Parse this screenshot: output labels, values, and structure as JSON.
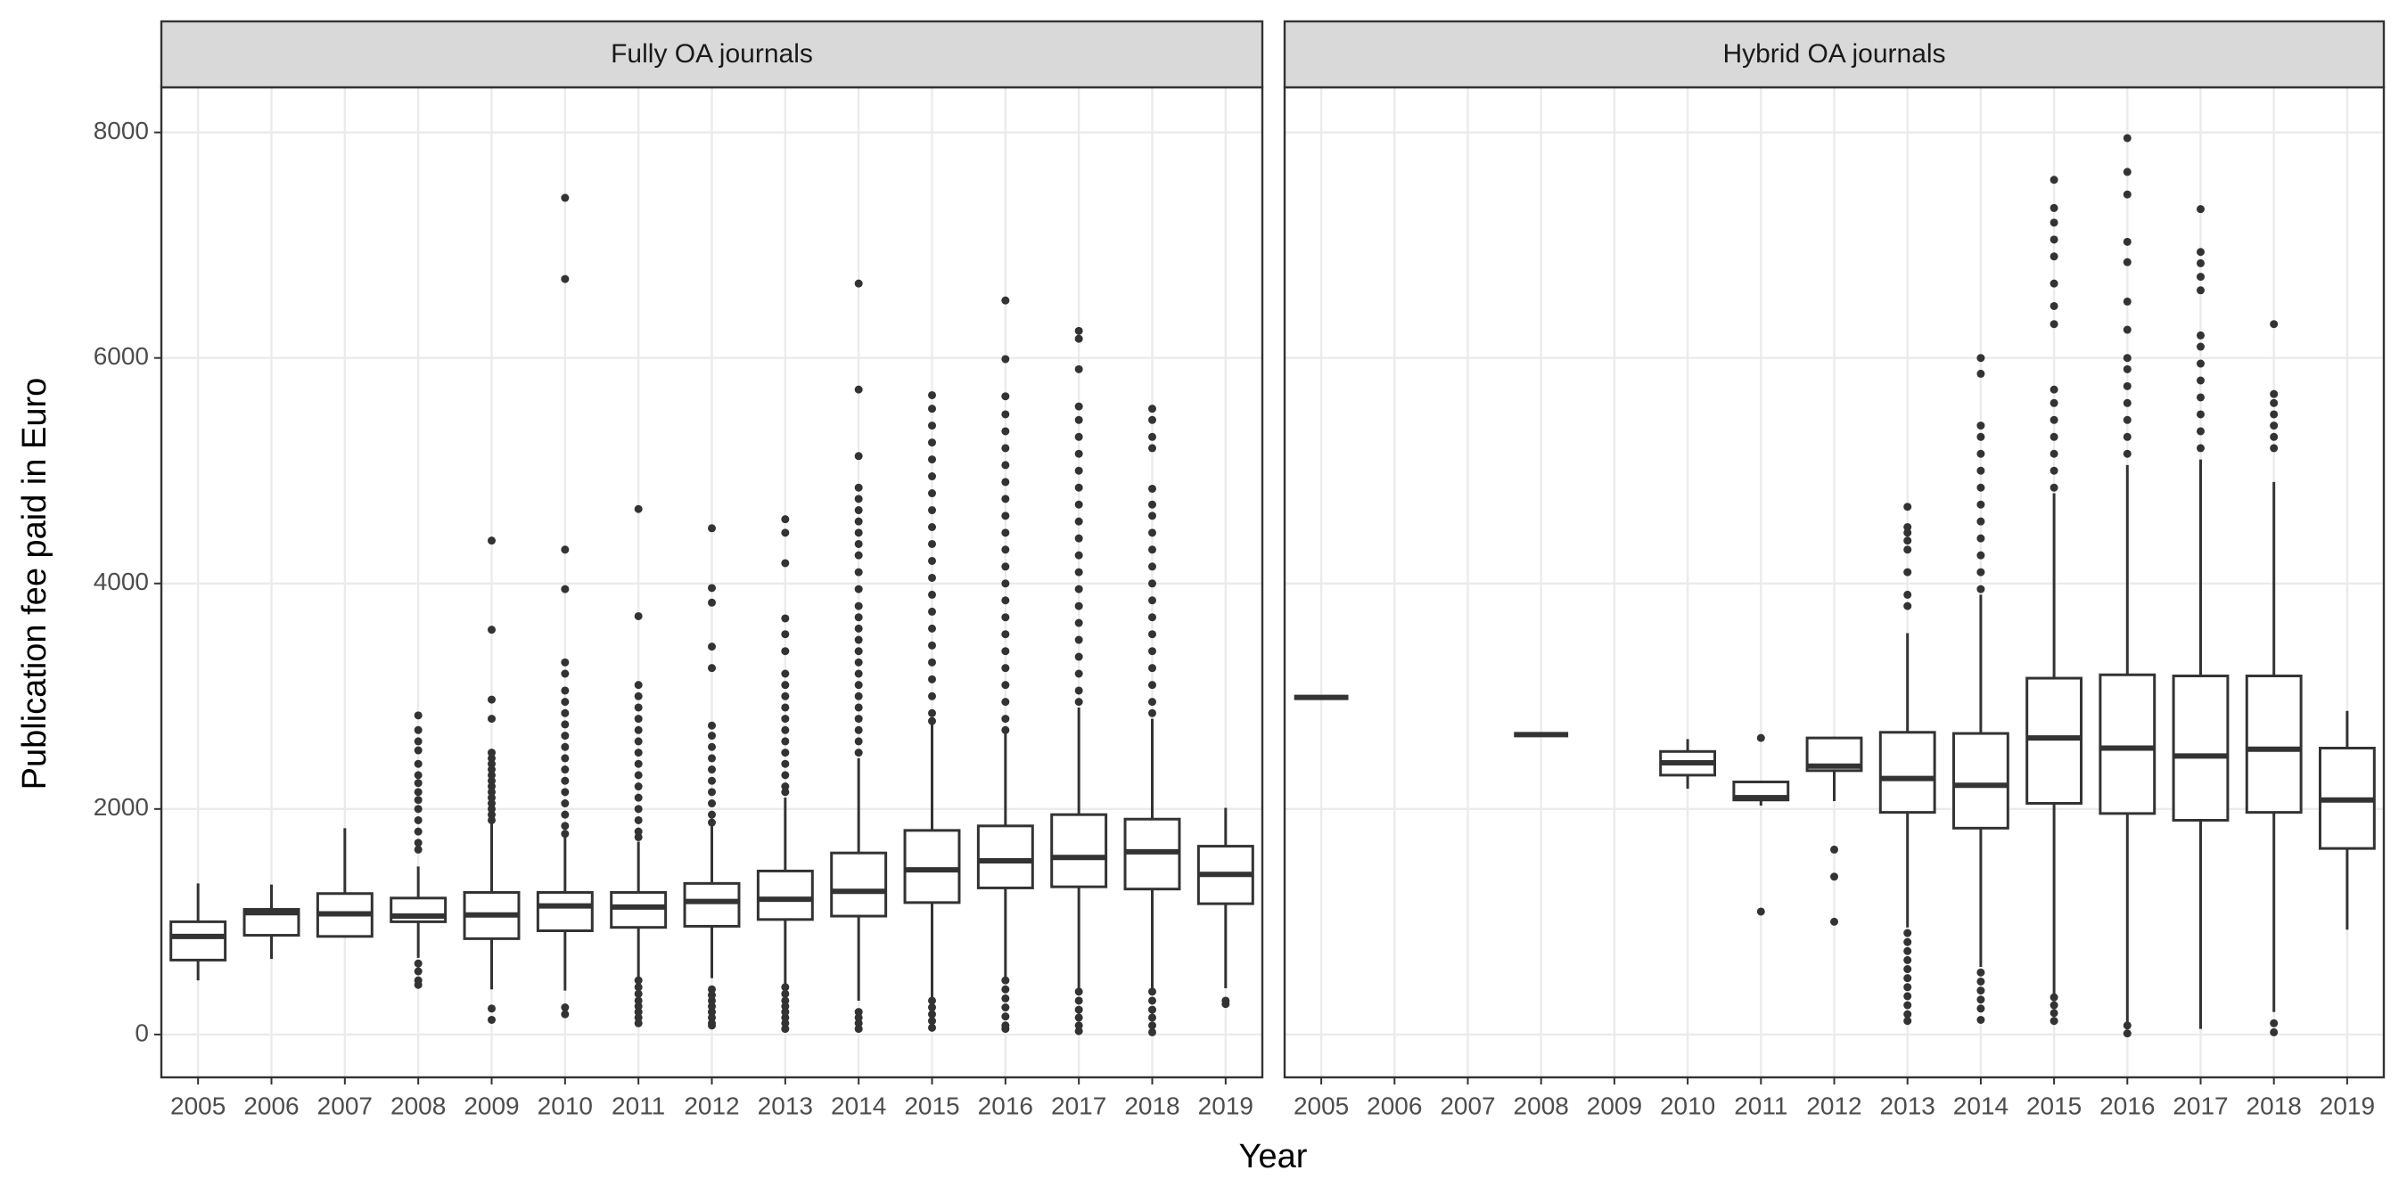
{
  "x_label": "Year",
  "y_label": "Publication fee paid in Euro",
  "chart_data": [
    {
      "type": "box",
      "title": "Fully OA journals",
      "color": "#333333",
      "grid": true,
      "ylim": [
        -380,
        8400
      ],
      "yticks": [
        0,
        2000,
        4000,
        6000,
        8000
      ],
      "categories": [
        "2005",
        "2006",
        "2007",
        "2008",
        "2009",
        "2010",
        "2011",
        "2012",
        "2013",
        "2014",
        "2015",
        "2016",
        "2017",
        "2018",
        "2019"
      ],
      "boxes": [
        {
          "whislo": 480,
          "q1": 660,
          "med": 870,
          "q3": 1000,
          "whishi": 1340,
          "fliers": []
        },
        {
          "whislo": 670,
          "q1": 880,
          "med": 1080,
          "q3": 1110,
          "whishi": 1330,
          "fliers": []
        },
        {
          "whislo": 860,
          "q1": 870,
          "med": 1070,
          "q3": 1250,
          "whishi": 1830,
          "fliers": []
        },
        {
          "whislo": 680,
          "q1": 1000,
          "med": 1050,
          "q3": 1210,
          "whishi": 1490,
          "fliers": [
            2830,
            2700,
            2600,
            2520,
            2400,
            2300,
            2230,
            2150,
            2080,
            2000,
            1900,
            1800,
            1700,
            1640,
            630,
            560,
            480,
            440
          ]
        },
        {
          "whislo": 400,
          "q1": 850,
          "med": 1060,
          "q3": 1260,
          "whishi": 1880,
          "fliers": [
            4380,
            3590,
            2970,
            2800,
            2500,
            2450,
            2400,
            2350,
            2300,
            2250,
            2200,
            2150,
            2100,
            2050,
            2000,
            1950,
            1900,
            230,
            130
          ]
        },
        {
          "whislo": 390,
          "q1": 920,
          "med": 1140,
          "q3": 1260,
          "whishi": 1750,
          "fliers": [
            7420,
            6700,
            4300,
            3950,
            3300,
            3200,
            3050,
            2950,
            2850,
            2750,
            2650,
            2550,
            2450,
            2350,
            2250,
            2150,
            2050,
            1950,
            1850,
            1780,
            240,
            180
          ]
        },
        {
          "whislo": 500,
          "q1": 950,
          "med": 1130,
          "q3": 1260,
          "whishi": 1710,
          "fliers": [
            4660,
            3710,
            3100,
            3000,
            2900,
            2800,
            2700,
            2600,
            2500,
            2400,
            2300,
            2200,
            2100,
            2000,
            1900,
            1800,
            1750,
            480,
            420,
            360,
            300,
            250,
            200,
            150,
            100
          ]
        },
        {
          "whislo": 500,
          "q1": 960,
          "med": 1180,
          "q3": 1340,
          "whishi": 1850,
          "fliers": [
            4490,
            3960,
            3830,
            3440,
            3250,
            2740,
            2650,
            2550,
            2450,
            2350,
            2250,
            2150,
            2050,
            1950,
            1880,
            400,
            350,
            300,
            250,
            200,
            150,
            100,
            80
          ]
        },
        {
          "whislo": 430,
          "q1": 1020,
          "med": 1200,
          "q3": 1450,
          "whishi": 2100,
          "fliers": [
            4570,
            4450,
            4180,
            3690,
            3550,
            3400,
            3200,
            3100,
            3000,
            2900,
            2800,
            2700,
            2600,
            2500,
            2400,
            2300,
            2200,
            2150,
            420,
            360,
            300,
            250,
            200,
            150,
            100,
            50
          ]
        },
        {
          "whislo": 300,
          "q1": 1050,
          "med": 1270,
          "q3": 1610,
          "whishi": 2450,
          "fliers": [
            6660,
            5720,
            5130,
            4850,
            4750,
            4650,
            4550,
            4450,
            4350,
            4250,
            4100,
            3950,
            3800,
            3700,
            3600,
            3500,
            3400,
            3300,
            3200,
            3100,
            3000,
            2900,
            2800,
            2700,
            2600,
            2500,
            200,
            150,
            100,
            50
          ]
        },
        {
          "whislo": 310,
          "q1": 1170,
          "med": 1460,
          "q3": 1810,
          "whishi": 2750,
          "fliers": [
            5670,
            5550,
            5400,
            5250,
            5100,
            4950,
            4800,
            4650,
            4500,
            4350,
            4200,
            4050,
            3900,
            3750,
            3600,
            3450,
            3300,
            3150,
            3000,
            2850,
            2780,
            300,
            240,
            180,
            120,
            60
          ]
        },
        {
          "whislo": 500,
          "q1": 1300,
          "med": 1540,
          "q3": 1850,
          "whishi": 2680,
          "fliers": [
            6510,
            5990,
            5660,
            5500,
            5350,
            5200,
            5050,
            4900,
            4750,
            4600,
            4450,
            4300,
            4150,
            4000,
            3850,
            3700,
            3550,
            3400,
            3250,
            3100,
            2950,
            2800,
            2700,
            480,
            400,
            320,
            240,
            160,
            80,
            50
          ]
        },
        {
          "whislo": 400,
          "q1": 1310,
          "med": 1570,
          "q3": 1950,
          "whishi": 2900,
          "fliers": [
            6240,
            6170,
            5900,
            5570,
            5450,
            5300,
            5150,
            5000,
            4850,
            4700,
            4550,
            4400,
            4250,
            4100,
            3950,
            3800,
            3650,
            3500,
            3350,
            3200,
            3050,
            2950,
            380,
            300,
            220,
            150,
            80,
            30
          ]
        },
        {
          "whislo": 400,
          "q1": 1290,
          "med": 1620,
          "q3": 1910,
          "whishi": 2800,
          "fliers": [
            5550,
            5450,
            5300,
            5200,
            4840,
            4700,
            4600,
            4450,
            4300,
            4150,
            4000,
            3850,
            3700,
            3550,
            3400,
            3250,
            3100,
            2950,
            2850,
            380,
            300,
            220,
            150,
            80,
            20
          ]
        },
        {
          "whislo": 410,
          "q1": 1160,
          "med": 1420,
          "q3": 1670,
          "whishi": 2010,
          "fliers": [
            300,
            270
          ]
        }
      ]
    },
    {
      "type": "box",
      "title": "Hybrid OA journals",
      "color": "#333333",
      "grid": true,
      "ylim": [
        -380,
        8400
      ],
      "yticks": [
        0,
        2000,
        4000,
        6000,
        8000
      ],
      "categories": [
        "2005",
        "2006",
        "2007",
        "2008",
        "2009",
        "2010",
        "2011",
        "2012",
        "2013",
        "2014",
        "2015",
        "2016",
        "2017",
        "2018",
        "2019"
      ],
      "boxes": [
        {
          "whislo": 2990,
          "q1": 2990,
          "med": 2990,
          "q3": 2990,
          "whishi": 2990,
          "fliers": []
        },
        null,
        null,
        {
          "whislo": 2660,
          "q1": 2660,
          "med": 2660,
          "q3": 2660,
          "whishi": 2660,
          "fliers": []
        },
        null,
        {
          "whislo": 2180,
          "q1": 2300,
          "med": 2410,
          "q3": 2510,
          "whishi": 2620,
          "fliers": []
        },
        {
          "whislo": 2030,
          "q1": 2080,
          "med": 2100,
          "q3": 2240,
          "whishi": 2250,
          "fliers": [
            2630,
            1090
          ]
        },
        {
          "whislo": 2070,
          "q1": 2340,
          "med": 2380,
          "q3": 2630,
          "whishi": 2640,
          "fliers": [
            1640,
            1400,
            1000
          ]
        },
        {
          "whislo": 950,
          "q1": 1970,
          "med": 2270,
          "q3": 2680,
          "whishi": 3560,
          "fliers": [
            4680,
            4500,
            4450,
            4380,
            4300,
            4100,
            3900,
            3800,
            900,
            820,
            740,
            660,
            580,
            500,
            420,
            340,
            260,
            180,
            120
          ]
        },
        {
          "whislo": 600,
          "q1": 1830,
          "med": 2210,
          "q3": 2670,
          "whishi": 3900,
          "fliers": [
            6000,
            5860,
            5400,
            5300,
            5150,
            5000,
            4850,
            4700,
            4550,
            4400,
            4250,
            4100,
            3950,
            550,
            470,
            390,
            310,
            230,
            130
          ]
        },
        {
          "whislo": 350,
          "q1": 2050,
          "med": 2630,
          "q3": 3160,
          "whishi": 4800,
          "fliers": [
            7580,
            7330,
            7200,
            7050,
            6900,
            6660,
            6460,
            6300,
            5720,
            5600,
            5450,
            5300,
            5150,
            5000,
            4850,
            330,
            260,
            190,
            120
          ]
        },
        {
          "whislo": 100,
          "q1": 1960,
          "med": 2540,
          "q3": 3190,
          "whishi": 5050,
          "fliers": [
            7950,
            7650,
            7450,
            7030,
            6850,
            6500,
            6250,
            6000,
            5900,
            5750,
            5600,
            5450,
            5300,
            5150,
            80,
            10
          ]
        },
        {
          "whislo": 50,
          "q1": 1900,
          "med": 2470,
          "q3": 3180,
          "whishi": 5100,
          "fliers": [
            7320,
            6940,
            6840,
            6720,
            6600,
            6200,
            6100,
            5950,
            5800,
            5650,
            5500,
            5350,
            5200
          ]
        },
        {
          "whislo": 200,
          "q1": 1970,
          "med": 2530,
          "q3": 3180,
          "whishi": 4900,
          "fliers": [
            6300,
            5680,
            5600,
            5500,
            5400,
            5300,
            5200,
            100,
            20
          ]
        },
        {
          "whislo": 930,
          "q1": 1650,
          "med": 2080,
          "q3": 2540,
          "whishi": 2870,
          "fliers": []
        }
      ]
    }
  ]
}
